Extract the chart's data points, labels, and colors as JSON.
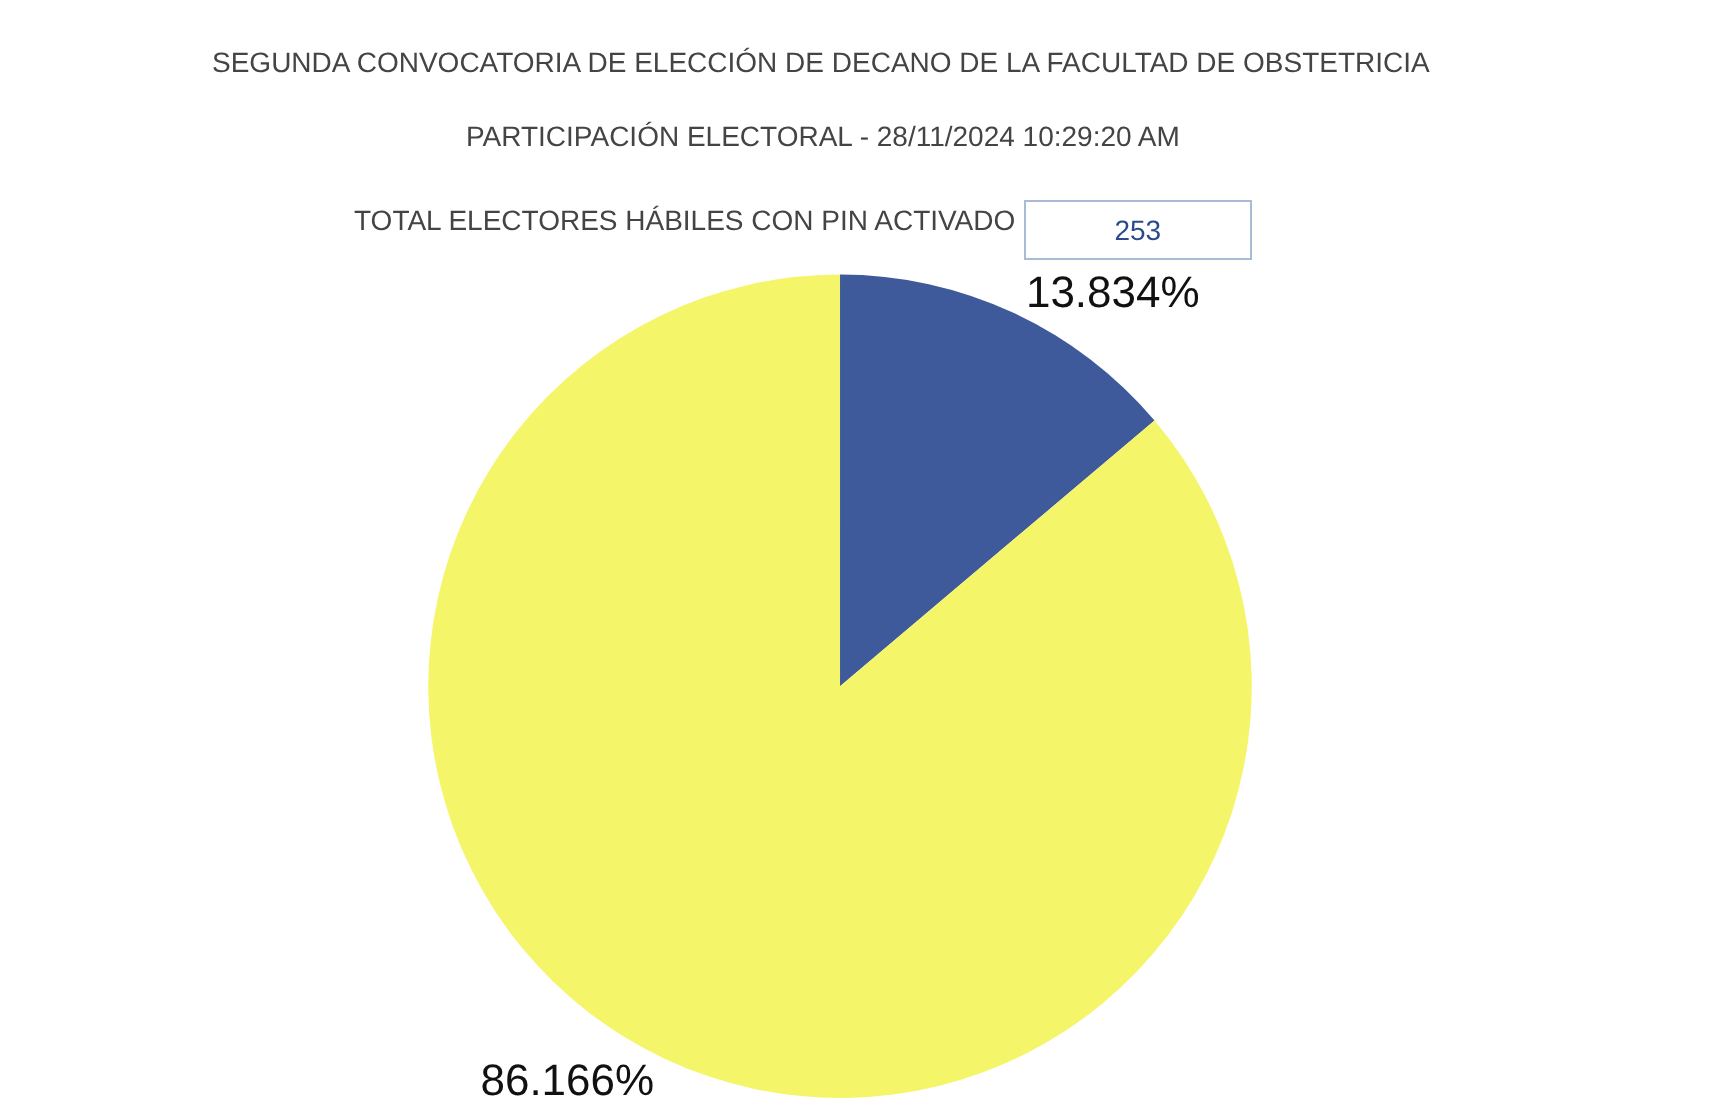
{
  "chart_data": {
    "type": "pie",
    "title": "SEGUNDA CONVOCATORIA DE ELECCIÓN DE DECANO DE LA FACULTAD DE OBSTETRICIA",
    "subtitle": "PARTICIPACIÓN ELECTORAL - 28/11/2024 10:29:20 AM",
    "annotations": [
      "TOTAL ELECTORES HÁBILES CON PIN ACTIVADO",
      "253"
    ],
    "categories": [
      null,
      null
    ],
    "values": [
      13.834,
      86.166
    ],
    "value_labels": [
      "13.834%",
      "86.166%"
    ],
    "colors": [
      "#3f5a9a",
      "#f5f56a"
    ],
    "legend": false
  }
}
